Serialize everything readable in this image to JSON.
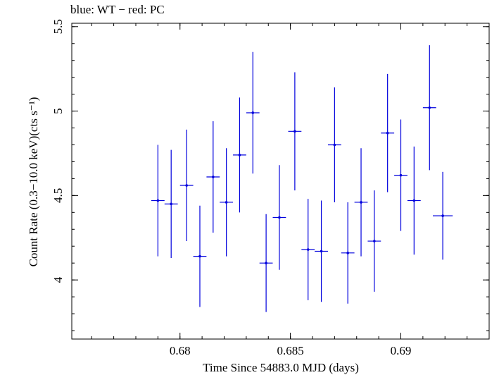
{
  "chart_data": {
    "type": "scatter",
    "title": "blue: WT − red: PC",
    "xlabel": "Time Since 54883.0 MJD (days)",
    "ylabel": "Count Rate (0.3−10.0 keV)(cts s⁻¹)",
    "xlim": [
      0.6751,
      0.694
    ],
    "ylim": [
      3.65,
      5.52
    ],
    "x_ticks": [
      0.68,
      0.685,
      0.69
    ],
    "x_tick_labels": [
      "0.68",
      "0.685",
      "0.69"
    ],
    "y_ticks": [
      4,
      4.5,
      5,
      5.5
    ],
    "y_tick_labels": [
      "4",
      "4.5",
      "5",
      "5.5"
    ],
    "grid": false,
    "color": "#0000dd",
    "series": [
      {
        "points": [
          {
            "x": 0.679,
            "y": 4.47,
            "xerr": 0.0003,
            "yerr": 0.33
          },
          {
            "x": 0.6796,
            "y": 4.45,
            "xerr": 0.0003,
            "yerr": 0.32
          },
          {
            "x": 0.6803,
            "y": 4.56,
            "xerr": 0.0003,
            "yerr": 0.33
          },
          {
            "x": 0.6809,
            "y": 4.14,
            "xerr": 0.0003,
            "yerr": 0.3
          },
          {
            "x": 0.6815,
            "y": 4.61,
            "xerr": 0.0003,
            "yerr": 0.33
          },
          {
            "x": 0.6821,
            "y": 4.46,
            "xerr": 0.0003,
            "yerr": 0.32
          },
          {
            "x": 0.6827,
            "y": 4.74,
            "xerr": 0.0003,
            "yerr": 0.34
          },
          {
            "x": 0.6833,
            "y": 4.99,
            "xerr": 0.0003,
            "yerr": 0.36
          },
          {
            "x": 0.6839,
            "y": 4.1,
            "xerr": 0.0003,
            "yerr": 0.29
          },
          {
            "x": 0.6845,
            "y": 4.37,
            "xerr": 0.0003,
            "yerr": 0.31
          },
          {
            "x": 0.6852,
            "y": 4.88,
            "xerr": 0.0003,
            "yerr": 0.35
          },
          {
            "x": 0.6858,
            "y": 4.18,
            "xerr": 0.0003,
            "yerr": 0.3
          },
          {
            "x": 0.6864,
            "y": 4.17,
            "xerr": 0.0003,
            "yerr": 0.3
          },
          {
            "x": 0.687,
            "y": 4.8,
            "xerr": 0.0003,
            "yerr": 0.34
          },
          {
            "x": 0.6876,
            "y": 4.16,
            "xerr": 0.0003,
            "yerr": 0.3
          },
          {
            "x": 0.6882,
            "y": 4.46,
            "xerr": 0.0003,
            "yerr": 0.32
          },
          {
            "x": 0.6888,
            "y": 4.23,
            "xerr": 0.0003,
            "yerr": 0.3
          },
          {
            "x": 0.6894,
            "y": 4.87,
            "xerr": 0.0003,
            "yerr": 0.35
          },
          {
            "x": 0.69,
            "y": 4.62,
            "xerr": 0.0003,
            "yerr": 0.33
          },
          {
            "x": 0.6906,
            "y": 4.47,
            "xerr": 0.0003,
            "yerr": 0.32
          },
          {
            "x": 0.6913,
            "y": 5.02,
            "xerr": 0.0003,
            "yerr": 0.37
          },
          {
            "x": 0.6919,
            "y": 4.38,
            "xerr": 0.00045,
            "yerr": 0.26
          }
        ]
      }
    ]
  }
}
